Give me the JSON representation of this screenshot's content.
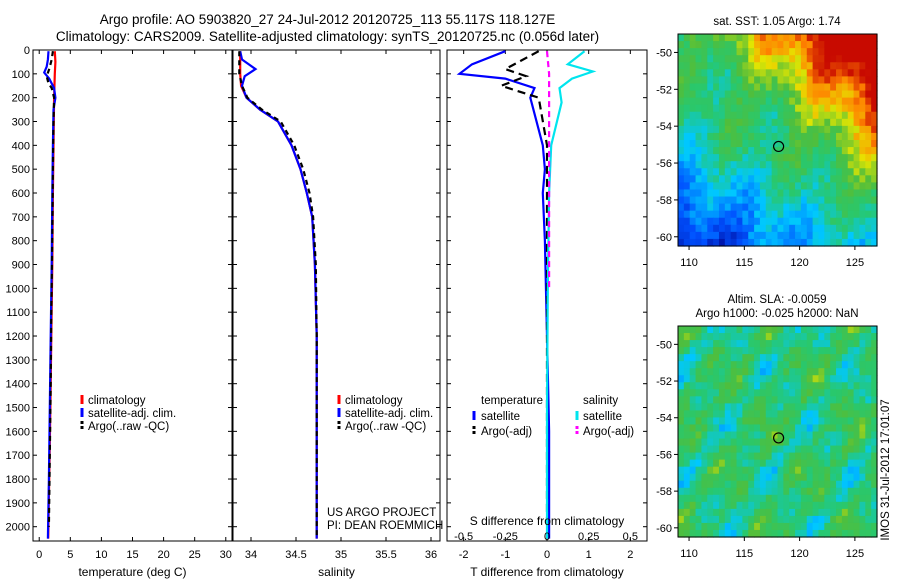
{
  "header": {
    "title_line1": "Argo profile: AO 5903820_27 24-Jul-2012 20120725_113 55.117S 118.127E",
    "title_line2": "Climatology: CARS2009. Satellite-adjusted climatology: synTS_20120725.nc (0.056d later)"
  },
  "colors": {
    "climatology": "#ff0000",
    "satellite": "#0000ff",
    "argo": "#000000",
    "satellite_salinity": "#00e5ee",
    "argo_salinity": "#ff00ff",
    "axis": "#000000"
  },
  "chart_data": [
    {
      "type": "line",
      "name": "temperature-profile",
      "xlabel": "temperature (deg C)",
      "ylabel": "",
      "xlim": [
        -1,
        31
      ],
      "ylim": [
        2060,
        0
      ],
      "x_ticks": [
        "0",
        "5",
        "10",
        "15",
        "20",
        "25",
        "30"
      ],
      "y_ticks": [
        "0",
        "100",
        "200",
        "300",
        "400",
        "500",
        "600",
        "700",
        "800",
        "900",
        "1000",
        "1100",
        "1200",
        "1300",
        "1400",
        "1500",
        "1600",
        "1700",
        "1800",
        "1900",
        "2000"
      ],
      "legend": [
        "climatology",
        "satellite-adj. clim.",
        "Argo(..raw -QC)"
      ],
      "series": [
        {
          "name": "climatology",
          "color": "#ff0000",
          "dash": "none",
          "x": [
            2.5,
            2.6,
            2.5,
            2.4,
            2.3,
            2.2,
            2.1,
            1.95,
            1.8,
            1.6,
            1.45
          ],
          "y": [
            5,
            50,
            100,
            200,
            400,
            600,
            900,
            1200,
            1500,
            1800,
            2050
          ]
        },
        {
          "name": "satellite-adj. clim.",
          "color": "#0000ff",
          "dash": "none",
          "x": [
            1.5,
            1.4,
            1.2,
            0.8,
            1.6,
            2.4,
            2.6,
            2.3,
            2.2,
            2.1,
            2.0,
            1.85,
            1.7,
            1.55,
            1.4
          ],
          "y": [
            5,
            40,
            70,
            95,
            120,
            160,
            200,
            250,
            400,
            600,
            900,
            1200,
            1500,
            1800,
            2050
          ]
        },
        {
          "name": "Argo(..raw -QC)",
          "color": "#000000",
          "dash": "5,4",
          "x": [
            2.2,
            2.0,
            1.6,
            1.2,
            1.5,
            2.0,
            2.4,
            2.3,
            2.2,
            2.1,
            1.95,
            1.85,
            1.7,
            1.55
          ],
          "y": [
            5,
            40,
            80,
            110,
            140,
            160,
            200,
            300,
            500,
            800,
            1100,
            1400,
            1700,
            2000
          ]
        }
      ]
    },
    {
      "type": "line",
      "name": "salinity-profile",
      "xlabel": "salinity",
      "ylabel": "",
      "xlim": [
        33.8,
        36.1
      ],
      "ylim": [
        2060,
        0
      ],
      "x_ticks": [
        "34",
        "34.5",
        "35",
        "35.5",
        "36"
      ],
      "legend": [
        "climatology",
        "satellite-adj. clim.",
        "Argo(..raw -QC)"
      ],
      "annotation": [
        "US ARGO PROJECT",
        "PI: DEAN ROEMMICH"
      ],
      "series": [
        {
          "name": "climatology",
          "color": "#ff0000",
          "dash": "none",
          "x": [
            33.88,
            33.88,
            33.89,
            33.95,
            34.1,
            34.3,
            34.45,
            34.55,
            34.62,
            34.68,
            34.71,
            34.73,
            34.73,
            34.73
          ],
          "y": [
            5,
            100,
            150,
            200,
            250,
            300,
            400,
            500,
            600,
            700,
            900,
            1200,
            1500,
            2050
          ]
        },
        {
          "name": "satellite-adj. clim.",
          "color": "#0000ff",
          "dash": "none",
          "x": [
            33.88,
            33.9,
            34.05,
            33.93,
            33.9,
            33.95,
            34.1,
            34.3,
            34.45,
            34.55,
            34.62,
            34.68,
            34.71,
            34.73,
            34.73,
            34.73
          ],
          "y": [
            5,
            40,
            80,
            110,
            150,
            200,
            250,
            300,
            400,
            500,
            600,
            700,
            900,
            1200,
            1500,
            2050
          ]
        },
        {
          "name": "Argo(..raw -QC)",
          "color": "#000000",
          "dash": "5,4",
          "x": [
            33.87,
            33.87,
            33.9,
            33.96,
            34.12,
            34.33,
            34.48,
            34.58,
            34.65,
            34.69,
            34.72,
            34.73,
            34.73
          ],
          "y": [
            5,
            100,
            150,
            200,
            250,
            300,
            400,
            500,
            600,
            700,
            900,
            1200,
            2050
          ]
        }
      ]
    },
    {
      "type": "line",
      "name": "difference-profile",
      "xlabel": "T difference from climatology",
      "xlabel_top": "S difference from climatology",
      "xlim": [
        -2.4,
        2.4
      ],
      "ylim": [
        2060,
        0
      ],
      "x_ticks": [
        "-2",
        "-1",
        "0",
        "1",
        "2"
      ],
      "x_ticks_top": [
        "-0.5",
        "-0.25",
        "0",
        "0.25",
        "0.5"
      ],
      "legend_temperature": {
        "heading": "temperature",
        "items": [
          "satellite",
          "Argo(-adj)"
        ]
      },
      "legend_salinity": {
        "heading": "salinity",
        "items": [
          "satellite",
          "Argo(-adj)"
        ]
      },
      "series": [
        {
          "name": "temperature satellite",
          "color": "#0000ff",
          "dash": "none",
          "x": [
            -1.0,
            -1.8,
            -2.1,
            -1.0,
            -0.3,
            -0.4,
            -0.1,
            -0.05,
            -0.1,
            -0.05,
            0.0,
            0.05,
            0.05
          ],
          "y": [
            5,
            60,
            100,
            120,
            160,
            200,
            400,
            500,
            600,
            800,
            1200,
            1600,
            2050
          ]
        },
        {
          "name": "temperature Argo(-adj)",
          "color": "#000000",
          "dash": "8,5",
          "x": [
            -0.2,
            -1.0,
            -0.5,
            -1.1,
            -0.2,
            0.0,
            0.0,
            0.0,
            0.0,
            0.0,
            0.0
          ],
          "y": [
            5,
            80,
            110,
            150,
            200,
            400,
            800,
            1200,
            1500,
            1800,
            2000
          ]
        },
        {
          "name": "salinity satellite",
          "color": "#00e5ee",
          "dash": "none",
          "x": [
            0.9,
            0.5,
            1.1,
            0.6,
            0.3,
            0.35,
            0.1,
            0.05,
            0.02,
            0.0,
            0.0
          ],
          "y": [
            5,
            60,
            90,
            120,
            160,
            220,
            400,
            600,
            1000,
            1500,
            2050
          ]
        },
        {
          "name": "salinity Argo(-adj)",
          "color": "#ff00ff",
          "dash": "6,4",
          "x": [
            0.0,
            0.05,
            0.05,
            0.05,
            0.05,
            0.05,
            0.05
          ],
          "y": [
            5,
            100,
            300,
            500,
            700,
            900,
            1000
          ]
        }
      ]
    },
    {
      "type": "heatmap",
      "name": "sst-map",
      "title": "sat. SST: 1.05 Argo: 1.74",
      "xlim": [
        109,
        127
      ],
      "ylim": [
        -60.5,
        -49
      ],
      "x_ticks": [
        "110",
        "115",
        "120",
        "125"
      ],
      "y_ticks": [
        "-50",
        "-52",
        "-54",
        "-56",
        "-58",
        "-60"
      ],
      "marker": {
        "lon": 118.1,
        "lat": -55.1
      }
    },
    {
      "type": "heatmap",
      "name": "sla-map",
      "title_line1": "Altim. SLA: -0.0059",
      "title_line2": "Argo h1000: -0.025 h2000: NaN",
      "xlim": [
        109,
        127
      ],
      "ylim": [
        -60.5,
        -49
      ],
      "x_ticks": [
        "110",
        "115",
        "120",
        "125"
      ],
      "y_ticks": [
        "-50",
        "-52",
        "-54",
        "-56",
        "-58",
        "-60"
      ],
      "marker": {
        "lon": 118.1,
        "lat": -55.1
      }
    }
  ],
  "footer": {
    "side_text": "IMOS 31-Jul-2012 17:01:07"
  }
}
